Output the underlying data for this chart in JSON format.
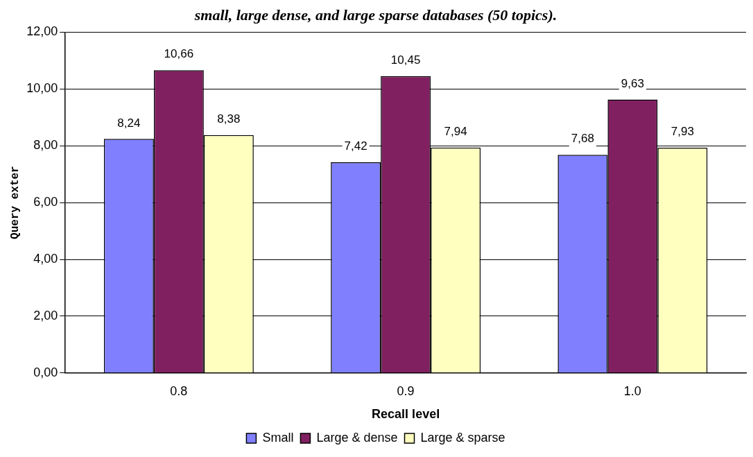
{
  "chart_data": {
    "type": "bar",
    "title": "small, large dense, and large sparse databases (50 topics).",
    "xlabel": "Recall level",
    "ylabel": "Query exter",
    "categories": [
      "0.8",
      "0.9",
      "1.0"
    ],
    "series": [
      {
        "name": "Small",
        "color": "#8080ff",
        "values": [
          8.24,
          7.42,
          7.68
        ],
        "value_labels": [
          "8,24",
          "7,42",
          "7,68"
        ]
      },
      {
        "name": "Large & dense",
        "color": "#802060",
        "values": [
          10.66,
          10.45,
          9.63
        ],
        "value_labels": [
          "10,66",
          "10,45",
          "9,63"
        ]
      },
      {
        "name": "Large & sparse",
        "color": "#ffffc0",
        "values": [
          8.38,
          7.94,
          7.93
        ],
        "value_labels": [
          "8,38",
          "7,94",
          "7,93"
        ]
      }
    ],
    "ylim": [
      0,
      12
    ],
    "yticks": [
      {
        "value": 0,
        "label": "0,00"
      },
      {
        "value": 2,
        "label": "2,00"
      },
      {
        "value": 4,
        "label": "4,00"
      },
      {
        "value": 6,
        "label": "6,00"
      },
      {
        "value": 8,
        "label": "8,00"
      },
      {
        "value": 10,
        "label": "10,00"
      },
      {
        "value": 12,
        "label": "12,00"
      }
    ],
    "grid": "y",
    "legend": "bottom"
  }
}
